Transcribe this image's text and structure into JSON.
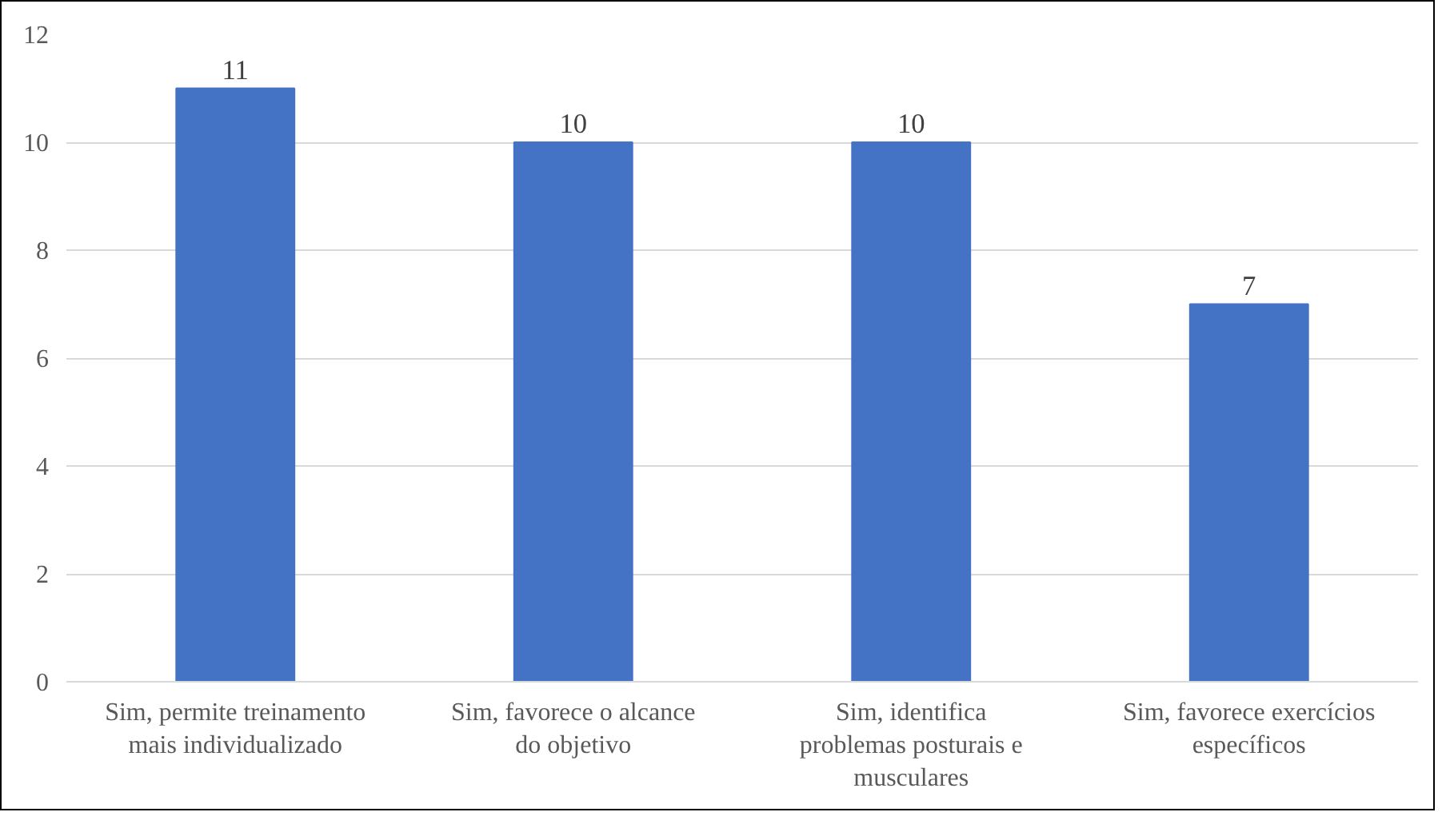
{
  "chart_data": {
    "type": "bar",
    "categories": [
      "Sim, permite treinamento mais individualizado",
      "Sim, favorece o alcance do objetivo",
      "Sim, identifica problemas posturais e musculares",
      "Sim, favorece exercícios específicos"
    ],
    "values": [
      11,
      10,
      10,
      7
    ],
    "color": "#4472c4",
    "ylim": [
      0,
      12
    ],
    "yticks": [
      0,
      2,
      4,
      6,
      8,
      10,
      12
    ],
    "grid": "y",
    "data_labels": true
  }
}
